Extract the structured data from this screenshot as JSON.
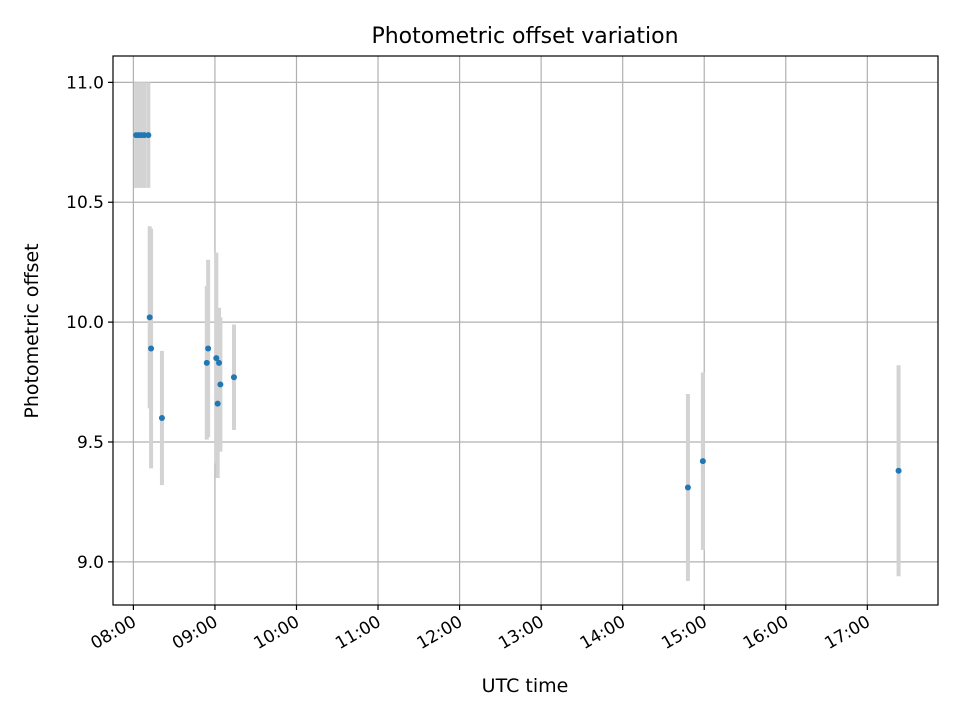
{
  "chart_data": {
    "type": "scatter",
    "title": "Photometric offset variation",
    "xlabel": "UTC time",
    "ylabel": "Photometric offset",
    "x_ticks": [
      "08:00",
      "09:00",
      "10:00",
      "11:00",
      "12:00",
      "13:00",
      "14:00",
      "15:00",
      "16:00",
      "17:00"
    ],
    "y_ticks": [
      "9.0",
      "9.5",
      "10.0",
      "10.5",
      "11.0"
    ],
    "xlim": [
      "07:45",
      "17:52"
    ],
    "ylim": [
      8.82,
      11.11
    ],
    "grid": true,
    "x_tick_rotation": "30 degrees, right-aligned",
    "marker_color": "#1f77b4",
    "errorbar_color": "#d3d3d3",
    "points": [
      {
        "x": "08:02",
        "y": 10.78,
        "yerr": 0.22
      },
      {
        "x": "08:04",
        "y": 10.78,
        "yerr": 0.22
      },
      {
        "x": "08:06",
        "y": 10.78,
        "yerr": 0.22
      },
      {
        "x": "08:08",
        "y": 10.78,
        "yerr": 0.22
      },
      {
        "x": "08:11",
        "y": 10.78,
        "yerr": 0.22
      },
      {
        "x": "08:12",
        "y": 10.02,
        "yerr": 0.38
      },
      {
        "x": "08:13",
        "y": 9.89,
        "yerr": 0.5
      },
      {
        "x": "08:21",
        "y": 9.6,
        "yerr": 0.28
      },
      {
        "x": "08:54",
        "y": 9.83,
        "yerr": 0.32
      },
      {
        "x": "08:55",
        "y": 9.89,
        "yerr": 0.37
      },
      {
        "x": "09:01",
        "y": 9.85,
        "yerr": 0.44
      },
      {
        "x": "09:02",
        "y": 9.66,
        "yerr": 0.31
      },
      {
        "x": "09:03",
        "y": 9.83,
        "yerr": 0.23
      },
      {
        "x": "09:04",
        "y": 9.74,
        "yerr": 0.28
      },
      {
        "x": "09:14",
        "y": 9.77,
        "yerr": 0.22
      },
      {
        "x": "14:48",
        "y": 9.31,
        "yerr": 0.39
      },
      {
        "x": "14:59",
        "y": 9.42,
        "yerr": 0.37
      },
      {
        "x": "17:23",
        "y": 9.38,
        "yerr": 0.44
      }
    ]
  }
}
